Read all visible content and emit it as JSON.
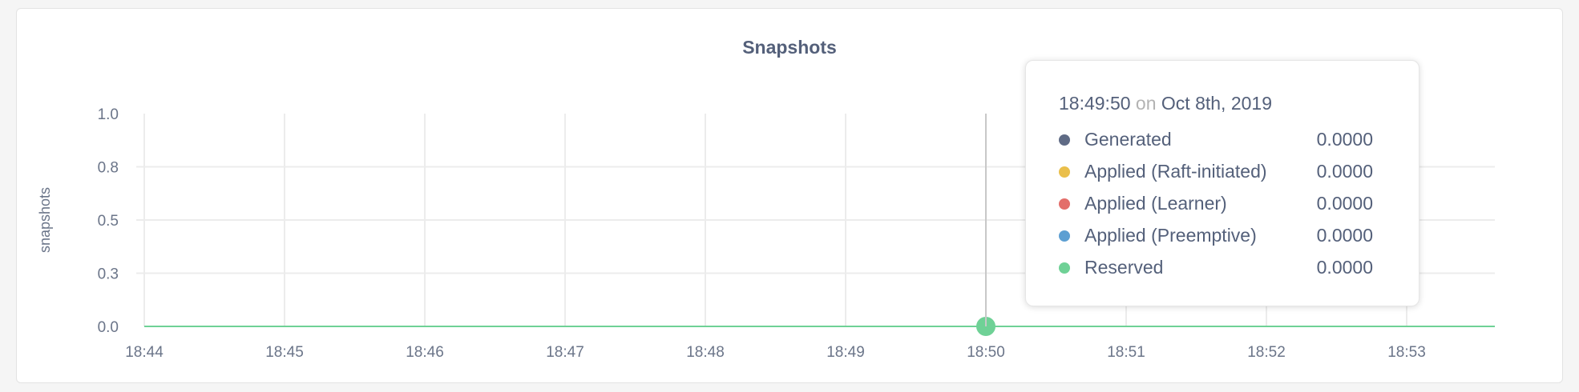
{
  "chart_data": {
    "type": "line",
    "title": "Snapshots",
    "ylabel": "snapshots",
    "xlabel": "",
    "ylim": [
      0,
      1
    ],
    "yticks": [
      0,
      0.25,
      0.5,
      0.75,
      1.0
    ],
    "ytick_labels": [
      "0.0",
      "0.3",
      "0.5",
      "0.8",
      "1.0"
    ],
    "xticks": [
      "18:44",
      "18:45",
      "18:46",
      "18:47",
      "18:48",
      "18:49",
      "18:50",
      "18:51",
      "18:52",
      "18:53"
    ],
    "xlim_minutes": [
      "18:44",
      "18:53:45"
    ],
    "grid": true,
    "series": [
      {
        "name": "Generated",
        "color": "#5f6b85",
        "values": [
          0,
          0,
          0,
          0,
          0,
          0,
          0,
          0,
          0,
          0
        ]
      },
      {
        "name": "Applied (Raft-initiated)",
        "color": "#eabf4b",
        "values": [
          0,
          0,
          0,
          0,
          0,
          0,
          0,
          0,
          0,
          0
        ]
      },
      {
        "name": "Applied (Learner)",
        "color": "#e36e6a",
        "values": [
          0,
          0,
          0,
          0,
          0,
          0,
          0,
          0,
          0,
          0
        ]
      },
      {
        "name": "Applied (Preemptive)",
        "color": "#5d9fd2",
        "values": [
          0,
          0,
          0,
          0,
          0,
          0,
          0,
          0,
          0,
          0
        ]
      },
      {
        "name": "Reserved",
        "color": "#6fd196",
        "values": [
          0,
          0,
          0,
          0,
          0,
          0,
          0,
          0,
          0,
          0
        ]
      }
    ],
    "hover": {
      "x": "18:50"
    }
  },
  "tooltip": {
    "time": "18:49:50",
    "on": "on",
    "date": "Oct 8th, 2019",
    "rows": [
      {
        "label": "Generated",
        "value": "0.0000",
        "color": "#5f6b85"
      },
      {
        "label": "Applied (Raft-initiated)",
        "value": "0.0000",
        "color": "#eabf4b"
      },
      {
        "label": "Applied (Learner)",
        "value": "0.0000",
        "color": "#e36e6a"
      },
      {
        "label": "Applied (Preemptive)",
        "value": "0.0000",
        "color": "#5d9fd2"
      },
      {
        "label": "Reserved",
        "value": "0.0000",
        "color": "#6fd196"
      }
    ]
  }
}
